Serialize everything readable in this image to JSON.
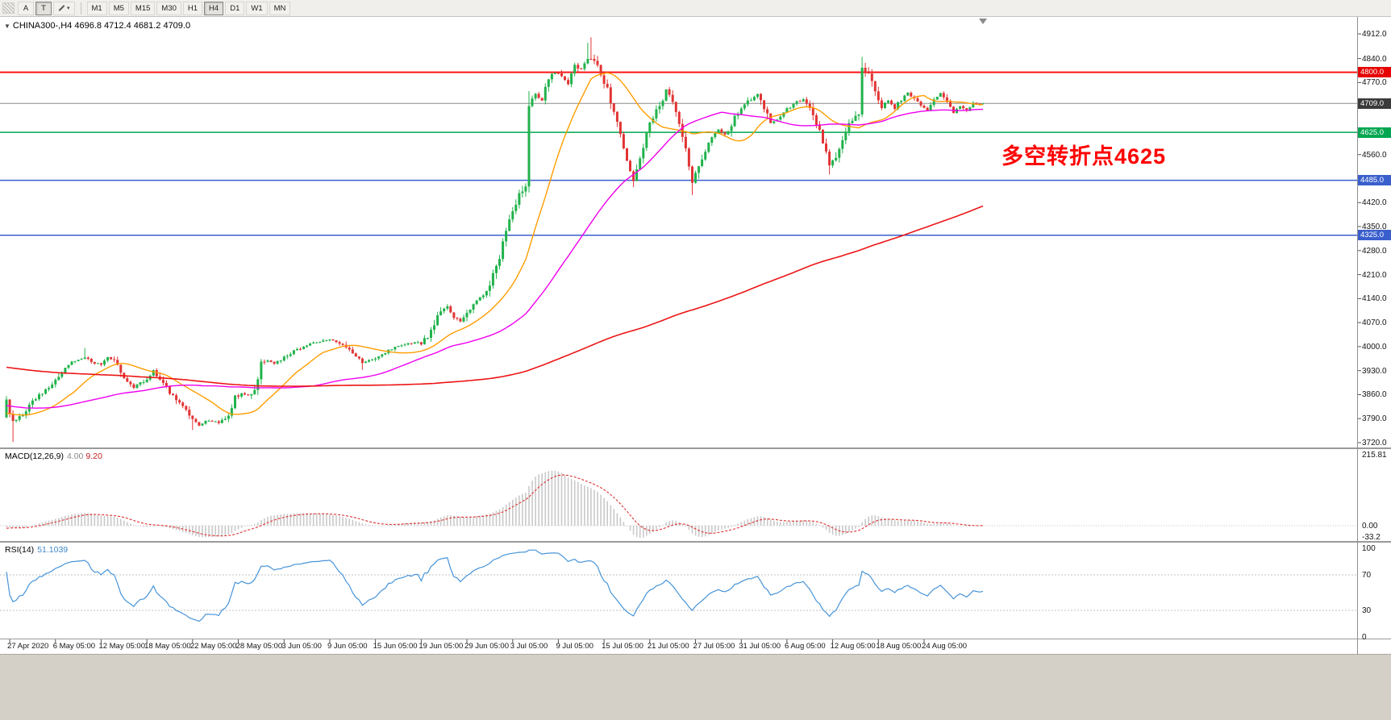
{
  "toolbar": {
    "tools": [
      {
        "name": "grip-icon"
      },
      {
        "label": "A",
        "name": "arrow-tool"
      },
      {
        "label": "T",
        "name": "text-tool",
        "active": true
      },
      {
        "name": "line-style-tool",
        "has_dropdown": true
      }
    ],
    "timeframes": [
      {
        "label": "M1"
      },
      {
        "label": "M5"
      },
      {
        "label": "M15"
      },
      {
        "label": "M30"
      },
      {
        "label": "H1"
      },
      {
        "label": "H4",
        "active": true
      },
      {
        "label": "D1"
      },
      {
        "label": "W1"
      },
      {
        "label": "MN"
      }
    ]
  },
  "chart_header": {
    "collapse_icon": "▼",
    "title": "CHINA300-,H4",
    "ohlc_text": "4696.8 4712.4 4681.2 4709.0"
  },
  "annotation": {
    "text": "多空转折点4625",
    "color": "#ff0000"
  },
  "panels": {
    "macd": {
      "label": "MACD(12,26,9)",
      "main_value": "4.00",
      "signal_value": "9.20",
      "axis_labels": [
        "215.81",
        "0.00",
        "-33.2"
      ]
    },
    "rsi": {
      "label": "RSI(14)",
      "value": "51.1039",
      "axis_labels": [
        "100",
        "70",
        "30",
        "0"
      ],
      "level_lines": [
        70,
        30
      ]
    }
  },
  "chart_data": {
    "type": "candlestick",
    "symbol": "CHINA300-",
    "timeframe": "H4",
    "ohlc_current": {
      "open": 4696.8,
      "high": 4712.4,
      "low": 4681.2,
      "close": 4709.0
    },
    "last_close": 4709.0,
    "y_range": [
      3720,
      4912
    ],
    "candle_count": 300,
    "y_ticks": [
      "4912.0",
      "4840.0",
      "4770.0",
      "4700.0",
      "4630.0",
      "4560.0",
      "4490.0",
      "4420.0",
      "4350.0",
      "4280.0",
      "4210.0",
      "4140.0",
      "4070.0",
      "4000.0",
      "3930.0",
      "3860.0",
      "3790.0",
      "3720.0"
    ],
    "x_labels": [
      {
        "text": "27 Apr 2020",
        "i": 1
      },
      {
        "text": "6 May 05:00",
        "i": 15
      },
      {
        "text": "12 May 05:00",
        "i": 29
      },
      {
        "text": "18 May 05:00",
        "i": 43
      },
      {
        "text": "22 May 05:00",
        "i": 57
      },
      {
        "text": "28 May 05:00",
        "i": 71
      },
      {
        "text": "3 Jun 05:00",
        "i": 85
      },
      {
        "text": "9 Jun 05:00",
        "i": 99
      },
      {
        "text": "15 Jun 05:00",
        "i": 113
      },
      {
        "text": "19 Jun 05:00",
        "i": 127
      },
      {
        "text": "29 Jun 05:00",
        "i": 141
      },
      {
        "text": "3 Jul 05:00",
        "i": 155
      },
      {
        "text": "9 Jul 05:00",
        "i": 169
      },
      {
        "text": "15 Jul 05:00",
        "i": 183
      },
      {
        "text": "21 Jul 05:00",
        "i": 197
      },
      {
        "text": "27 Jul 05:00",
        "i": 211
      },
      {
        "text": "31 Jul 05:00",
        "i": 225
      },
      {
        "text": "6 Aug 05:00",
        "i": 239
      },
      {
        "text": "12 Aug 05:00",
        "i": 253
      },
      {
        "text": "18 Aug 05:00",
        "i": 267
      },
      {
        "text": "24 Aug 05:00",
        "i": 281
      }
    ],
    "levels": [
      {
        "price": 4800.0,
        "label": "4800.0",
        "line": "#ff1111",
        "box": "#e60000",
        "lw": 2
      },
      {
        "price": 4709.0,
        "label": "4709.0",
        "line": "#8c8c8c",
        "box": "#3b3b3b",
        "lw": 1
      },
      {
        "price": 4625.0,
        "label": "4625.0",
        "line": "#00a651",
        "box": "#00a651",
        "lw": 1.5
      },
      {
        "price": 4485.0,
        "label": "4485.0",
        "line": "#3a5fcd",
        "box": "#3a5fcd",
        "lw": 1.5
      },
      {
        "price": 4325.0,
        "label": "4325.0",
        "line": "#3a5fcd",
        "box": "#3a5fcd",
        "lw": 1.5
      }
    ],
    "moving_averages": [
      {
        "name": "fast",
        "period": 20,
        "color": "#ff9d00"
      },
      {
        "name": "mid",
        "period": 60,
        "color": "#f000f0"
      },
      {
        "name": "slow",
        "period": 240,
        "color": "#ed1515"
      }
    ],
    "indicators": [
      {
        "name": "MACD",
        "params": "12,26,9",
        "values": [
          4.0,
          9.2
        ]
      },
      {
        "name": "RSI",
        "params": "14",
        "value": 51.1039
      }
    ],
    "colors": {
      "up": "#21b24b",
      "down": "#e23434",
      "ma_fast": "#ff9d00",
      "ma_mid": "#f000f0",
      "ma_slow": "#ed1515",
      "macd_hist": "#c9c9c9",
      "macd_signal": "#e03030",
      "rsi": "#4694d8"
    },
    "waypoints": [
      [
        0,
        3845
      ],
      [
        2,
        3778
      ],
      [
        5,
        3800
      ],
      [
        9,
        3852
      ],
      [
        13,
        3878
      ],
      [
        15,
        3900
      ],
      [
        18,
        3942
      ],
      [
        21,
        3958
      ],
      [
        24,
        3968
      ],
      [
        27,
        3952
      ],
      [
        29,
        3948
      ],
      [
        31,
        3972
      ],
      [
        33,
        3958
      ],
      [
        36,
        3912
      ],
      [
        39,
        3882
      ],
      [
        41,
        3895
      ],
      [
        43,
        3908
      ],
      [
        45,
        3930
      ],
      [
        47,
        3905
      ],
      [
        50,
        3868
      ],
      [
        53,
        3840
      ],
      [
        55,
        3810
      ],
      [
        57,
        3788
      ],
      [
        59,
        3772
      ],
      [
        62,
        3785
      ],
      [
        65,
        3780
      ],
      [
        68,
        3800
      ],
      [
        70,
        3852
      ],
      [
        72,
        3862
      ],
      [
        74,
        3858
      ],
      [
        76,
        3872
      ],
      [
        78,
        3948
      ],
      [
        80,
        3958
      ],
      [
        82,
        3952
      ],
      [
        85,
        3968
      ],
      [
        88,
        3986
      ],
      [
        91,
        4002
      ],
      [
        94,
        4012
      ],
      [
        97,
        4018
      ],
      [
        99,
        4022
      ],
      [
        101,
        4015
      ],
      [
        103,
        4008
      ],
      [
        105,
        3988
      ],
      [
        107,
        3968
      ],
      [
        109,
        3955
      ],
      [
        111,
        3958
      ],
      [
        113,
        3965
      ],
      [
        116,
        3985
      ],
      [
        119,
        3998
      ],
      [
        122,
        4005
      ],
      [
        125,
        4012
      ],
      [
        127,
        4010
      ],
      [
        129,
        4032
      ],
      [
        131,
        4068
      ],
      [
        133,
        4105
      ],
      [
        135,
        4120
      ],
      [
        137,
        4088
      ],
      [
        139,
        4072
      ],
      [
        141,
        4098
      ],
      [
        143,
        4125
      ],
      [
        145,
        4140
      ],
      [
        147,
        4165
      ],
      [
        149,
        4205
      ],
      [
        151,
        4265
      ],
      [
        153,
        4330
      ],
      [
        155,
        4395
      ],
      [
        157,
        4440
      ],
      [
        159,
        4460
      ],
      [
        160,
        4700
      ],
      [
        162,
        4738
      ],
      [
        164,
        4722
      ],
      [
        166,
        4778
      ],
      [
        168,
        4800
      ],
      [
        170,
        4788
      ],
      [
        172,
        4766
      ],
      [
        174,
        4820
      ],
      [
        176,
        4808
      ],
      [
        178,
        4840
      ],
      [
        180,
        4838
      ],
      [
        182,
        4786
      ],
      [
        184,
        4748
      ],
      [
        186,
        4688
      ],
      [
        188,
        4622
      ],
      [
        190,
        4540
      ],
      [
        192,
        4482
      ],
      [
        194,
        4552
      ],
      [
        196,
        4622
      ],
      [
        198,
        4672
      ],
      [
        200,
        4698
      ],
      [
        202,
        4748
      ],
      [
        204,
        4708
      ],
      [
        206,
        4650
      ],
      [
        208,
        4572
      ],
      [
        210,
        4478
      ],
      [
        212,
        4528
      ],
      [
        214,
        4568
      ],
      [
        216,
        4608
      ],
      [
        218,
        4632
      ],
      [
        220,
        4615
      ],
      [
        222,
        4650
      ],
      [
        224,
        4682
      ],
      [
        226,
        4705
      ],
      [
        228,
        4722
      ],
      [
        230,
        4738
      ],
      [
        232,
        4695
      ],
      [
        234,
        4652
      ],
      [
        236,
        4660
      ],
      [
        238,
        4688
      ],
      [
        240,
        4700
      ],
      [
        242,
        4712
      ],
      [
        244,
        4722
      ],
      [
        246,
        4700
      ],
      [
        248,
        4655
      ],
      [
        250,
        4592
      ],
      [
        252,
        4530
      ],
      [
        254,
        4560
      ],
      [
        256,
        4610
      ],
      [
        258,
        4655
      ],
      [
        260,
        4672
      ],
      [
        261,
        4680
      ],
      [
        262,
        4812
      ],
      [
        264,
        4795
      ],
      [
        266,
        4745
      ],
      [
        268,
        4700
      ],
      [
        270,
        4718
      ],
      [
        272,
        4695
      ],
      [
        274,
        4722
      ],
      [
        276,
        4742
      ],
      [
        278,
        4722
      ],
      [
        280,
        4702
      ],
      [
        282,
        4692
      ],
      [
        284,
        4718
      ],
      [
        286,
        4738
      ],
      [
        288,
        4710
      ],
      [
        290,
        4682
      ],
      [
        292,
        4702
      ],
      [
        294,
        4690
      ],
      [
        296,
        4712
      ],
      [
        299,
        4706
      ]
    ],
    "spikes": [
      {
        "i": 2,
        "low": 3722
      },
      {
        "i": 24,
        "high": 3996
      },
      {
        "i": 57,
        "low": 3757
      },
      {
        "i": 109,
        "low": 3932
      },
      {
        "i": 160,
        "high": 4745
      },
      {
        "i": 178,
        "high": 4886
      },
      {
        "i": 179,
        "high": 4902
      },
      {
        "i": 192,
        "low": 4465
      },
      {
        "i": 210,
        "low": 4442
      },
      {
        "i": 252,
        "low": 4502
      },
      {
        "i": 262,
        "high": 4845
      }
    ]
  }
}
